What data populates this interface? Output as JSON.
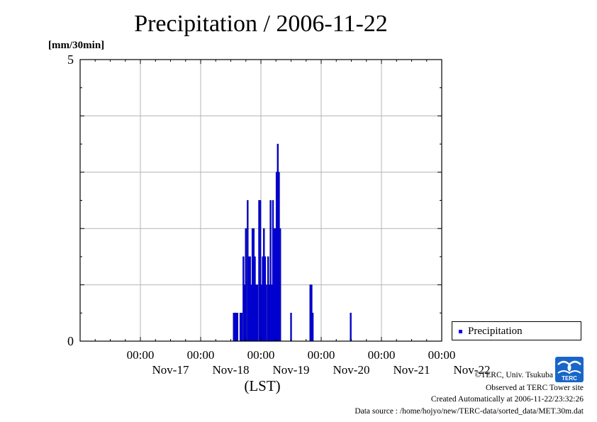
{
  "header": {
    "title": "Precipitation / 2006-11-22",
    "unit_label": "[mm/30min]"
  },
  "chart_data": {
    "type": "bar",
    "title": "Precipitation / 2006-11-22",
    "ylabel": "[mm/30min]",
    "xlabel": "(LST)",
    "ylim": [
      0,
      5
    ],
    "y_ticks": [
      "0",
      "5"
    ],
    "x_ticks": [
      {
        "time": "00:00",
        "date": "Nov-17"
      },
      {
        "time": "00:00",
        "date": "Nov-18"
      },
      {
        "time": "00:00",
        "date": "Nov-19"
      },
      {
        "time": "00:00",
        "date": "Nov-20"
      },
      {
        "time": "00:00",
        "date": "Nov-21"
      },
      {
        "time": "00:00",
        "date": "Nov-22"
      }
    ],
    "x_range_days": [
      -1.0,
      5.0
    ],
    "grid": true,
    "legend_position": "right",
    "series": [
      {
        "name": "Precipitation",
        "color": "#0000ff",
        "points": [
          [
            1.55,
            0.5
          ],
          [
            1.57,
            0.5
          ],
          [
            1.59,
            0.5
          ],
          [
            1.61,
            0.5
          ],
          [
            1.66,
            0.5
          ],
          [
            1.68,
            0.5
          ],
          [
            1.71,
            1.5
          ],
          [
            1.73,
            1.0
          ],
          [
            1.75,
            2.0
          ],
          [
            1.78,
            2.5
          ],
          [
            1.8,
            1.5
          ],
          [
            1.82,
            1.5
          ],
          [
            1.84,
            1.0
          ],
          [
            1.86,
            2.0
          ],
          [
            1.88,
            2.0
          ],
          [
            1.9,
            1.5
          ],
          [
            1.92,
            1.0
          ],
          [
            1.94,
            1.0
          ],
          [
            1.97,
            2.5
          ],
          [
            1.99,
            2.5
          ],
          [
            2.01,
            1.0
          ],
          [
            2.03,
            1.5
          ],
          [
            2.05,
            2.0
          ],
          [
            2.07,
            1.5
          ],
          [
            2.09,
            1.0
          ],
          [
            2.12,
            1.5
          ],
          [
            2.14,
            1.0
          ],
          [
            2.16,
            2.5
          ],
          [
            2.18,
            1.0
          ],
          [
            2.2,
            2.5
          ],
          [
            2.22,
            2.0
          ],
          [
            2.24,
            2.0
          ],
          [
            2.26,
            3.0
          ],
          [
            2.28,
            3.5
          ],
          [
            2.3,
            3.0
          ],
          [
            2.32,
            2.0
          ],
          [
            2.5,
            0.5
          ],
          [
            2.82,
            1.0
          ],
          [
            2.84,
            1.0
          ],
          [
            2.86,
            0.5
          ],
          [
            3.49,
            0.5
          ]
        ]
      }
    ]
  },
  "legend": {
    "label": "Precipitation"
  },
  "footer": {
    "copyright": "©TERC, Univ. Tsukuba",
    "observed": "Observed at TERC Tower site",
    "created": "Created Automatically at 2006-11-22/23:32:26",
    "source": "Data source : /home/hojyo/new/TERC-data/sorted_data/MET.30m.dat",
    "logo_text": "TERC"
  },
  "colors": {
    "bar": "#0000ff",
    "bar_outline": "#00007f",
    "grid": "#b4b4b4",
    "logo": "#1a66c8"
  }
}
